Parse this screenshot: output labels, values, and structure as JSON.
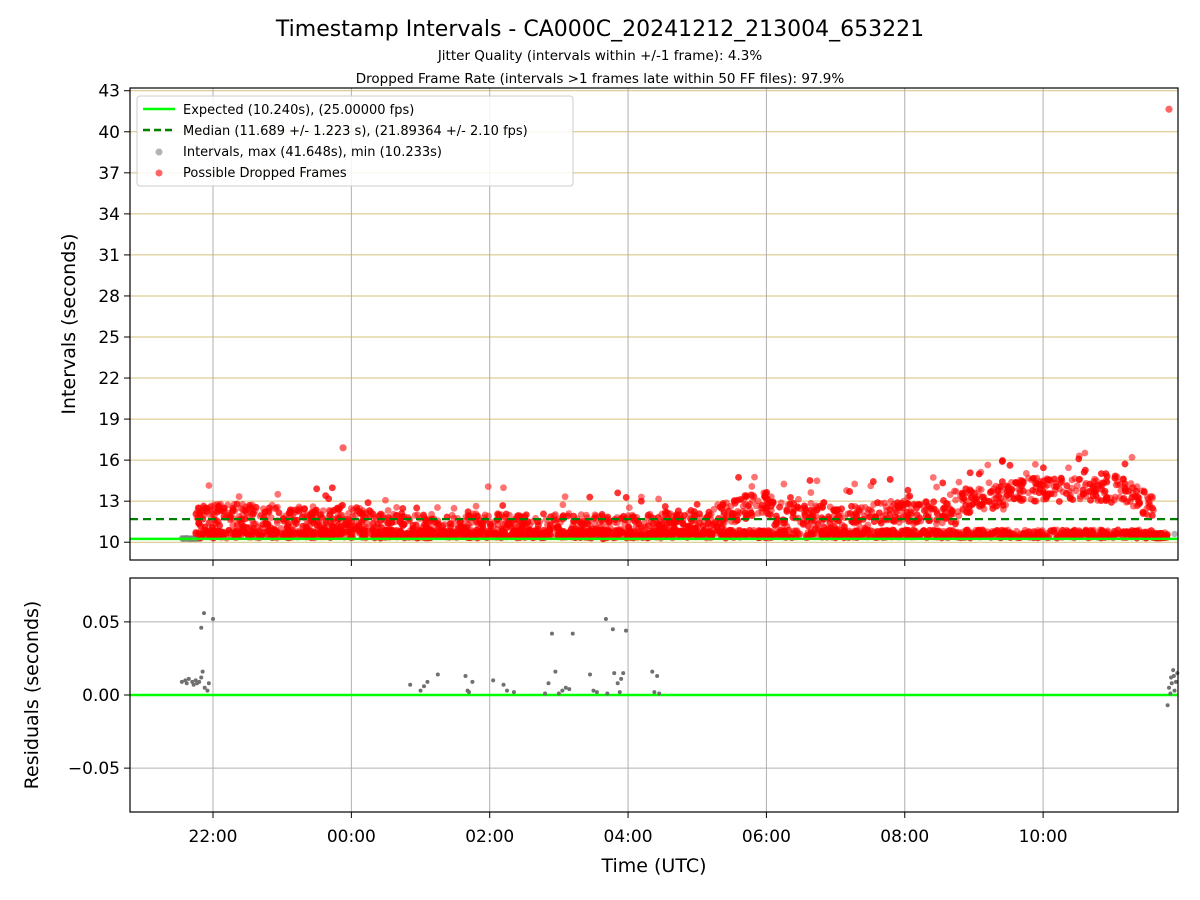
{
  "colors": {
    "expected": "#00ff00",
    "median": "#008000",
    "intervals": "#808080",
    "dropped": "#ff0000",
    "grid_top": "#d4c07a",
    "grid": "#b0b0b0"
  },
  "chart_data": {
    "title": "Timestamp Intervals - CA000C_20241212_213004_653221",
    "subtitle_1": "Jitter Quality (intervals within +/-1 frame): 4.3%",
    "subtitle_2": "Dropped Frame Rate (intervals >1 frames late within 50 FF files): 97.9%",
    "xlabel": "Time (UTC)",
    "x_tick_labels": [
      "22:00",
      "00:00",
      "02:00",
      "04:00",
      "06:00",
      "08:00",
      "10:00"
    ],
    "x_ticks_hours": [
      22,
      24,
      26,
      28,
      30,
      32,
      34
    ],
    "xlim_hours": [
      20.8,
      35.95
    ],
    "panels": [
      {
        "type": "scatter",
        "ylabel": "Intervals (seconds)",
        "ylim": [
          8.7,
          43.2
        ],
        "y_ticks": [
          10,
          13,
          16,
          19,
          22,
          25,
          28,
          31,
          34,
          37,
          40,
          43
        ],
        "grid": "horizontal and vertical",
        "legend_position": "upper-left",
        "expected_line": {
          "label": "Expected (10.240s), (25.00000 fps)",
          "value": 10.24
        },
        "median_line": {
          "label": "Median (11.689 +/- 1.223 s), (21.89364 +/- 2.10 fps)",
          "value": 11.689
        },
        "series": [
          {
            "name": "Intervals, max (41.648s), min (10.233s)",
            "max": 41.648,
            "min": 10.233
          },
          {
            "name": "Possible Dropped Frames"
          }
        ],
        "notable_points": [
          {
            "x": "23:53",
            "y": 16.9
          },
          {
            "x": "11:49",
            "y": 41.648
          }
        ]
      },
      {
        "type": "scatter",
        "ylabel": "Residuals (seconds)",
        "ylim": [
          -0.08,
          0.08
        ],
        "y_ticks": [
          -0.05,
          0.0,
          0.05
        ],
        "y_tick_labels": [
          "−0.05",
          "0.00",
          "0.05"
        ],
        "reference_line": 0.0,
        "grid": "horizontal and vertical",
        "points": [
          [
            21.55,
            0.009
          ],
          [
            21.6,
            0.01
          ],
          [
            21.62,
            0.008
          ],
          [
            21.65,
            0.011
          ],
          [
            21.7,
            0.009
          ],
          [
            21.72,
            0.007
          ],
          [
            21.75,
            0.01
          ],
          [
            21.77,
            0.008
          ],
          [
            21.8,
            0.009
          ],
          [
            21.83,
            0.012
          ],
          [
            21.85,
            0.016
          ],
          [
            21.83,
            0.046
          ],
          [
            21.87,
            0.056
          ],
          [
            21.88,
            0.005
          ],
          [
            21.92,
            0.003
          ],
          [
            21.94,
            0.008
          ],
          [
            22.0,
            0.052
          ],
          [
            24.85,
            0.007
          ],
          [
            25.0,
            0.003
          ],
          [
            25.05,
            0.006
          ],
          [
            25.1,
            0.009
          ],
          [
            25.25,
            0.014
          ],
          [
            25.65,
            0.013
          ],
          [
            25.68,
            0.003
          ],
          [
            25.7,
            0.002
          ],
          [
            25.75,
            0.009
          ],
          [
            26.05,
            0.01
          ],
          [
            26.2,
            0.007
          ],
          [
            26.25,
            0.003
          ],
          [
            26.35,
            0.002
          ],
          [
            26.8,
            0.001
          ],
          [
            26.85,
            0.008
          ],
          [
            26.9,
            0.042
          ],
          [
            26.95,
            0.016
          ],
          [
            27.0,
            0.001
          ],
          [
            27.05,
            0.003
          ],
          [
            27.1,
            0.005
          ],
          [
            27.15,
            0.004
          ],
          [
            27.2,
            0.042
          ],
          [
            27.45,
            0.014
          ],
          [
            27.5,
            0.003
          ],
          [
            27.55,
            0.002
          ],
          [
            27.68,
            0.052
          ],
          [
            27.7,
            0.001
          ],
          [
            27.78,
            0.045
          ],
          [
            27.8,
            0.015
          ],
          [
            27.85,
            0.008
          ],
          [
            27.88,
            0.002
          ],
          [
            27.9,
            0.011
          ],
          [
            27.93,
            0.015
          ],
          [
            27.97,
            0.044
          ],
          [
            28.35,
            0.016
          ],
          [
            28.38,
            0.002
          ],
          [
            28.42,
            0.013
          ],
          [
            28.45,
            0.001
          ],
          [
            35.8,
            -0.007
          ],
          [
            35.82,
            0.005
          ],
          [
            35.85,
            0.012
          ],
          [
            35.88,
            0.017
          ],
          [
            35.9,
            0.003
          ],
          [
            35.92,
            0.009
          ],
          [
            35.94,
            0.015
          ],
          [
            35.84,
            0.001
          ],
          [
            35.86,
            0.008
          ],
          [
            35.89,
            0.013
          ]
        ]
      }
    ]
  }
}
